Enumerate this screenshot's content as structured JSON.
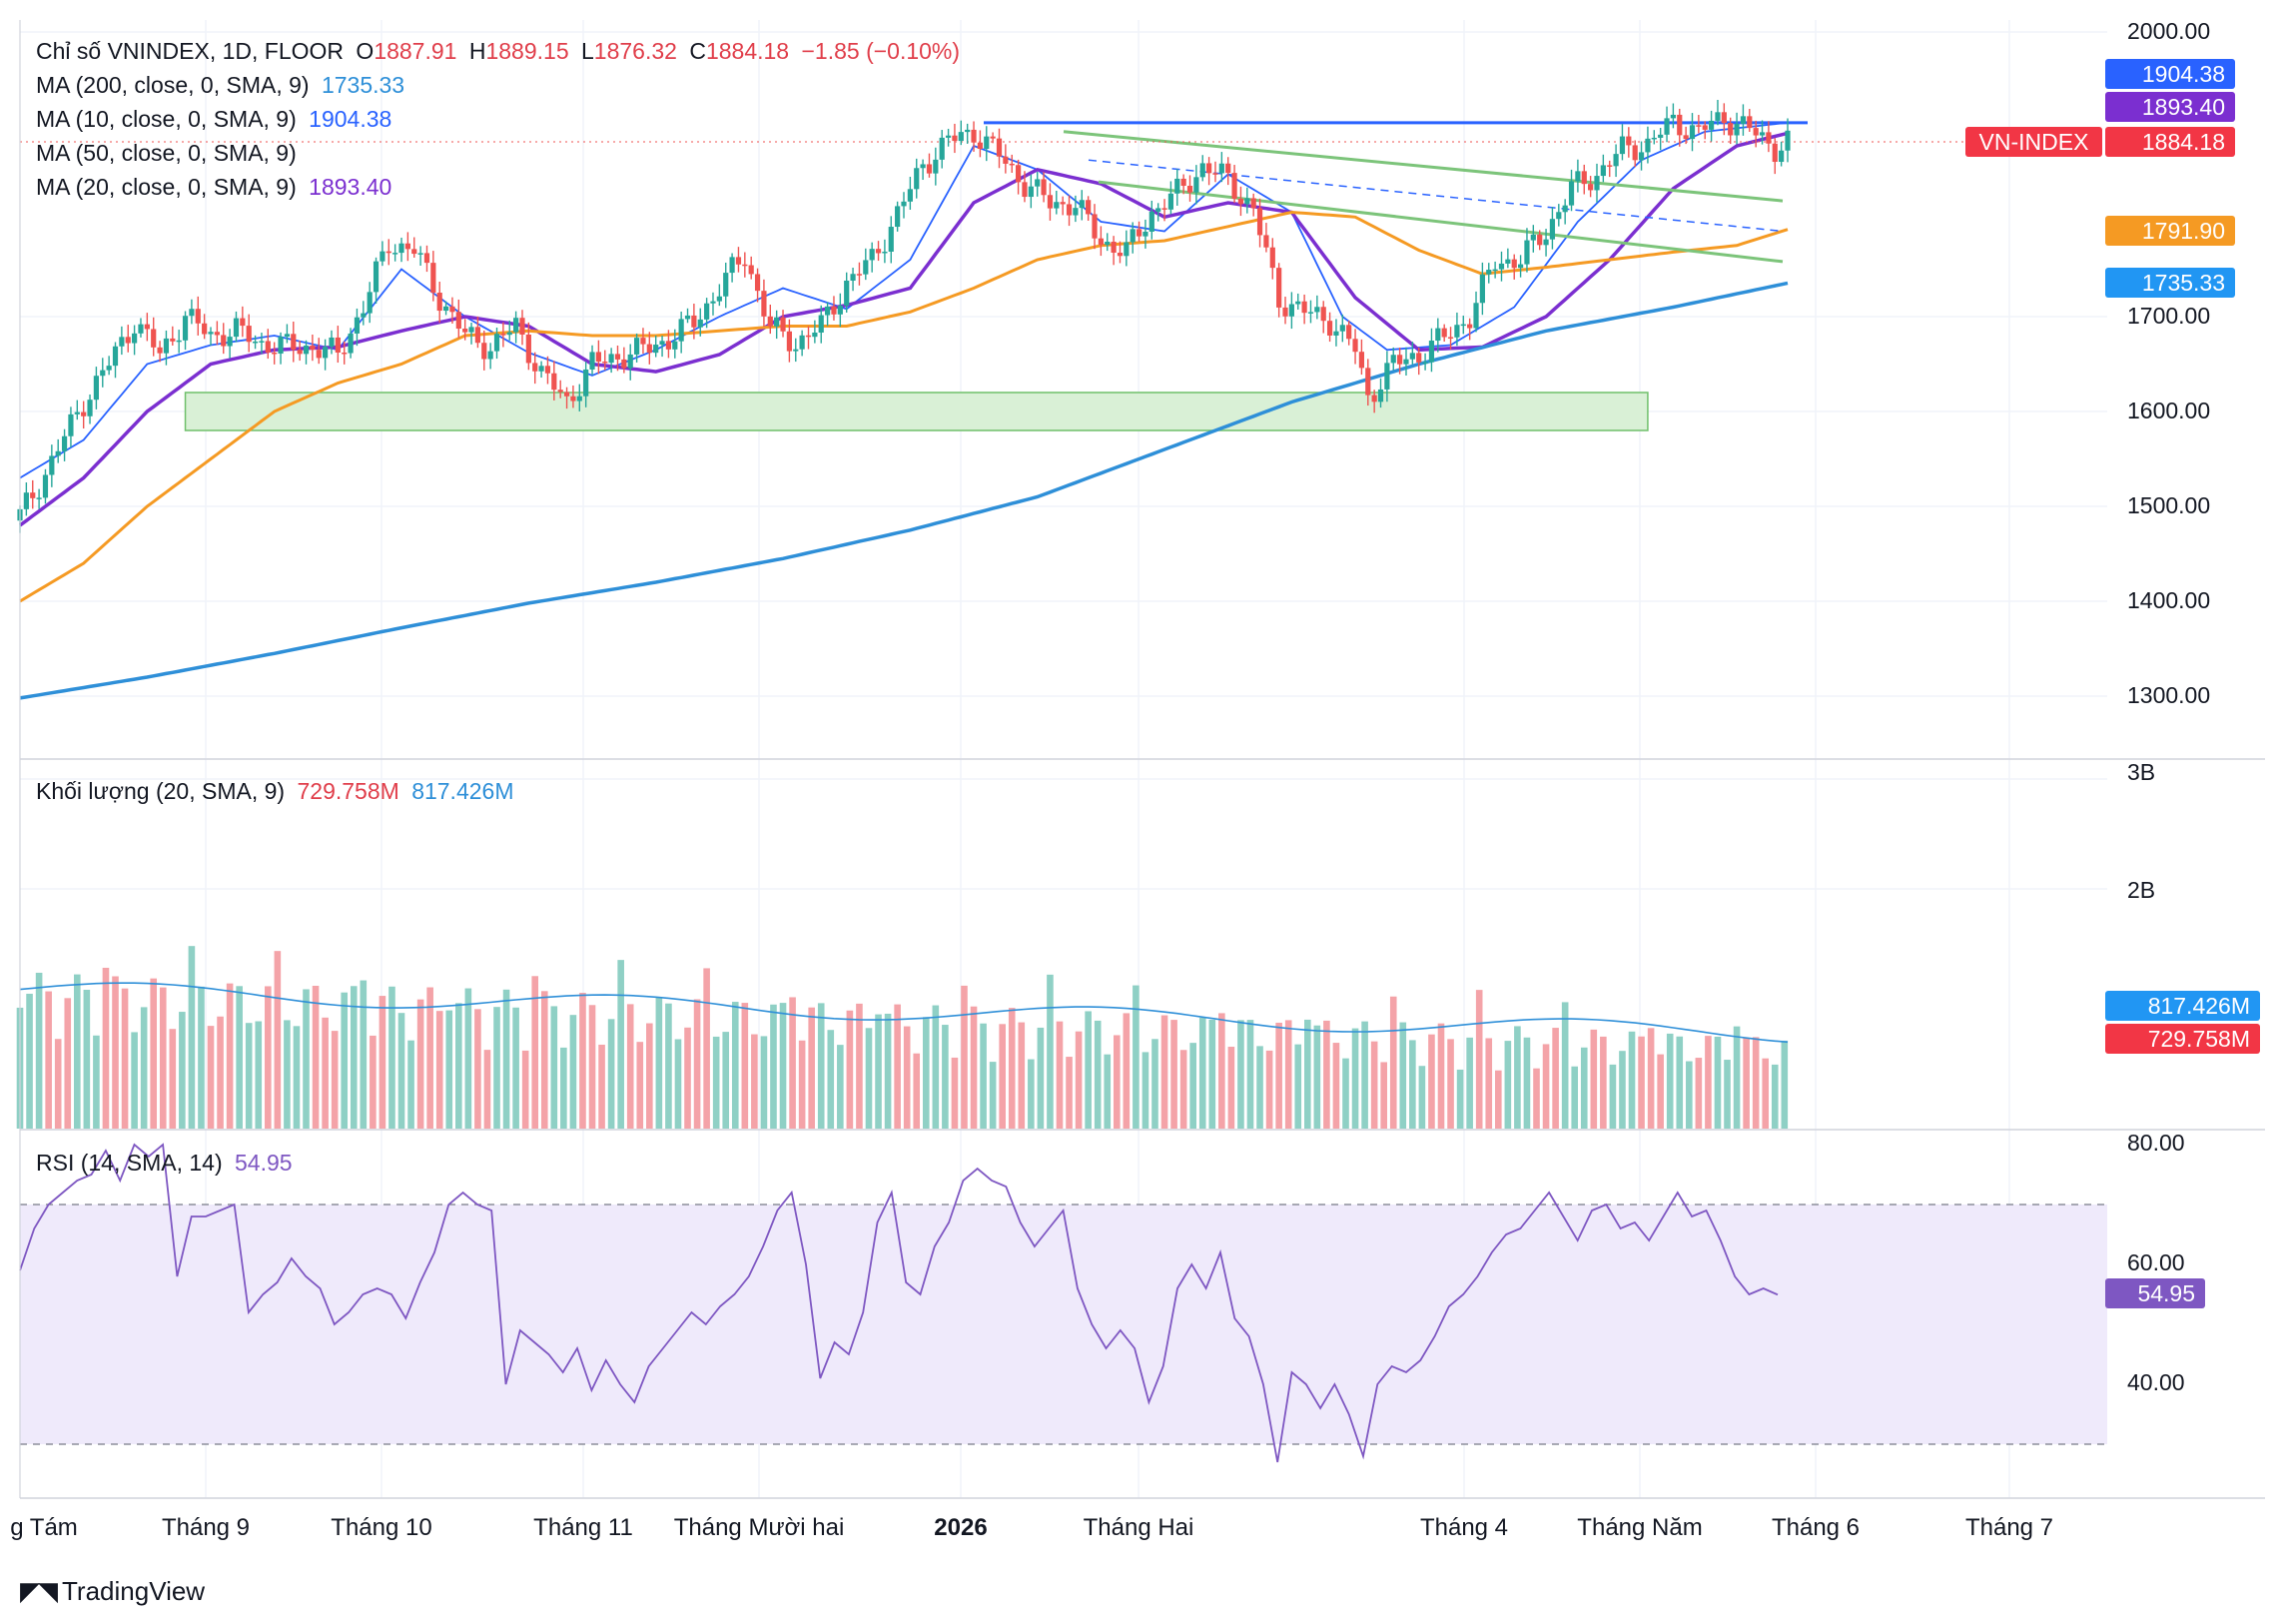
{
  "header": {
    "symbol_title": "Chỉ số VNINDEX, 1D, FLOOR",
    "o_label": "O",
    "o_value": "1887.91",
    "h_label": "H",
    "h_value": "1889.15",
    "l_label": "L",
    "l_value": "1876.32",
    "c_label": "C",
    "c_value": "1884.18",
    "change": "−1.85 (−0.10%)"
  },
  "indicators": {
    "ma200": {
      "label": "MA (200, close, 0, SMA, 9)",
      "value": "1735.33",
      "color": "#2e8fd8"
    },
    "ma10": {
      "label": "MA (10, close, 0, SMA, 9)",
      "value": "1904.38",
      "color": "#2962ff"
    },
    "ma50": {
      "label": "MA (50, close, 0, SMA, 9)",
      "value": "",
      "color": "#f59a23"
    },
    "ma20": {
      "label": "MA (20, close, 0, SMA, 9)",
      "value": "1893.40",
      "color": "#7b2fd0"
    }
  },
  "volume_panel": {
    "label": "Khối lượng (20, SMA, 9)",
    "value1": "729.758M",
    "value2": "817.426M"
  },
  "rsi_panel": {
    "label": "RSI (14, SMA, 14)",
    "value": "54.95"
  },
  "price_tags": {
    "ma10": "1904.38",
    "ma20": "1893.40",
    "symbol_name": "VN-INDEX",
    "last": "1884.18",
    "ma50": "1791.90",
    "ma200": "1735.33",
    "vol_ma": "817.426M",
    "vol_last": "729.758M",
    "rsi": "54.95"
  },
  "brand": "TradingView",
  "colors": {
    "up": "#26a69a",
    "down": "#ef5350",
    "vol_up": "#8fd0c5",
    "vol_down": "#f4a3a8",
    "support_zone": "#d9f0d6",
    "rsi_band": "#efeafb",
    "rsi_line": "#7e57c2",
    "resistance": "#2962ff",
    "channel": "#7cc47a"
  },
  "chart_data": [
    {
      "type": "candlestick",
      "title": "Chỉ số VNINDEX, 1D, FLOOR",
      "y_ticks": [
        "2000.00",
        "1700.00",
        "1600.00",
        "1500.00",
        "1400.00",
        "1300.00"
      ],
      "ylim": [
        1235,
        2020
      ],
      "x_ticks": [
        "g Tám",
        "Tháng 9",
        "Tháng 10",
        "Tháng 11",
        "Tháng Mười hai",
        "2026",
        "Tháng Hai",
        "Tháng 4",
        "Tháng Năm",
        "Tháng 6",
        "Tháng 7"
      ],
      "close_path": [
        [
          0,
          1490
        ],
        [
          4,
          1535
        ],
        [
          10,
          1610
        ],
        [
          14,
          1650
        ],
        [
          18,
          1695
        ],
        [
          22,
          1660
        ],
        [
          26,
          1700
        ],
        [
          30,
          1680
        ],
        [
          34,
          1685
        ],
        [
          38,
          1672
        ],
        [
          42,
          1668
        ],
        [
          46,
          1668
        ],
        [
          50,
          1660
        ],
        [
          54,
          1710
        ],
        [
          58,
          1778
        ],
        [
          62,
          1770
        ],
        [
          66,
          1720
        ],
        [
          70,
          1680
        ],
        [
          74,
          1668
        ],
        [
          78,
          1690
        ],
        [
          82,
          1640
        ],
        [
          86,
          1610
        ],
        [
          90,
          1650
        ],
        [
          94,
          1658
        ],
        [
          98,
          1665
        ],
        [
          102,
          1676
        ],
        [
          106,
          1694
        ],
        [
          110,
          1730
        ],
        [
          114,
          1765
        ],
        [
          118,
          1688
        ],
        [
          122,
          1672
        ],
        [
          126,
          1690
        ],
        [
          130,
          1735
        ],
        [
          134,
          1760
        ],
        [
          138,
          1808
        ],
        [
          142,
          1860
        ],
        [
          146,
          1885
        ],
        [
          150,
          1895
        ],
        [
          154,
          1870
        ],
        [
          158,
          1840
        ],
        [
          162,
          1820
        ],
        [
          166,
          1818
        ],
        [
          170,
          1780
        ],
        [
          174,
          1768
        ],
        [
          178,
          1810
        ],
        [
          182,
          1830
        ],
        [
          186,
          1858
        ],
        [
          190,
          1845
        ],
        [
          194,
          1812
        ],
        [
          198,
          1718
        ],
        [
          202,
          1705
        ],
        [
          206,
          1696
        ],
        [
          210,
          1665
        ],
        [
          212,
          1615
        ],
        [
          216,
          1650
        ],
        [
          220,
          1660
        ],
        [
          224,
          1678
        ],
        [
          228,
          1700
        ],
        [
          232,
          1758
        ],
        [
          236,
          1760
        ],
        [
          240,
          1790
        ],
        [
          244,
          1835
        ],
        [
          248,
          1850
        ],
        [
          252,
          1876
        ],
        [
          256,
          1882
        ],
        [
          260,
          1905
        ],
        [
          264,
          1895
        ],
        [
          268,
          1910
        ],
        [
          272,
          1897
        ],
        [
          276,
          1878
        ],
        [
          278,
          1884.18
        ]
      ],
      "series": [
        {
          "name": "MA (10, close, 0, SMA, 9)",
          "path": [
            [
              0,
              1530
            ],
            [
              10,
              1570
            ],
            [
              20,
              1650
            ],
            [
              30,
              1670
            ],
            [
              40,
              1680
            ],
            [
              50,
              1665
            ],
            [
              60,
              1750
            ],
            [
              70,
              1700
            ],
            [
              80,
              1662
            ],
            [
              90,
              1638
            ],
            [
              100,
              1665
            ],
            [
              110,
              1700
            ],
            [
              120,
              1730
            ],
            [
              130,
              1708
            ],
            [
              140,
              1760
            ],
            [
              150,
              1880
            ],
            [
              160,
              1855
            ],
            [
              170,
              1800
            ],
            [
              180,
              1790
            ],
            [
              190,
              1850
            ],
            [
              200,
              1810
            ],
            [
              208,
              1700
            ],
            [
              215,
              1665
            ],
            [
              225,
              1670
            ],
            [
              235,
              1710
            ],
            [
              245,
              1800
            ],
            [
              255,
              1865
            ],
            [
              265,
              1895
            ],
            [
              278,
              1904.38
            ]
          ]
        },
        {
          "name": "MA (20, close, 0, SMA, 9)",
          "path": [
            [
              0,
              1480
            ],
            [
              10,
              1530
            ],
            [
              20,
              1600
            ],
            [
              30,
              1650
            ],
            [
              40,
              1665
            ],
            [
              50,
              1668
            ],
            [
              60,
              1685
            ],
            [
              70,
              1700
            ],
            [
              80,
              1690
            ],
            [
              90,
              1650
            ],
            [
              100,
              1642
            ],
            [
              110,
              1660
            ],
            [
              120,
              1700
            ],
            [
              130,
              1712
            ],
            [
              140,
              1730
            ],
            [
              150,
              1820
            ],
            [
              160,
              1855
            ],
            [
              170,
              1840
            ],
            [
              180,
              1805
            ],
            [
              190,
              1820
            ],
            [
              200,
              1810
            ],
            [
              210,
              1720
            ],
            [
              220,
              1665
            ],
            [
              230,
              1668
            ],
            [
              240,
              1700
            ],
            [
              250,
              1760
            ],
            [
              260,
              1835
            ],
            [
              270,
              1880
            ],
            [
              278,
              1893.4
            ]
          ]
        },
        {
          "name": "MA (50, close, 0, SMA, 9)",
          "path": [
            [
              0,
              1400
            ],
            [
              10,
              1440
            ],
            [
              20,
              1500
            ],
            [
              30,
              1550
            ],
            [
              40,
              1600
            ],
            [
              50,
              1630
            ],
            [
              60,
              1650
            ],
            [
              70,
              1680
            ],
            [
              80,
              1685
            ],
            [
              90,
              1680
            ],
            [
              100,
              1680
            ],
            [
              110,
              1685
            ],
            [
              120,
              1690
            ],
            [
              130,
              1690
            ],
            [
              140,
              1705
            ],
            [
              150,
              1730
            ],
            [
              160,
              1760
            ],
            [
              170,
              1775
            ],
            [
              180,
              1780
            ],
            [
              190,
              1795
            ],
            [
              200,
              1810
            ],
            [
              210,
              1805
            ],
            [
              220,
              1770
            ],
            [
              230,
              1745
            ],
            [
              240,
              1752
            ],
            [
              250,
              1760
            ],
            [
              260,
              1768
            ],
            [
              270,
              1775
            ],
            [
              278,
              1791.9
            ]
          ]
        },
        {
          "name": "MA (200, close, 0, SMA, 9)",
          "path": [
            [
              0,
              1298
            ],
            [
              20,
              1320
            ],
            [
              40,
              1345
            ],
            [
              60,
              1372
            ],
            [
              80,
              1398
            ],
            [
              100,
              1420
            ],
            [
              120,
              1445
            ],
            [
              140,
              1475
            ],
            [
              160,
              1510
            ],
            [
              180,
              1560
            ],
            [
              200,
              1610
            ],
            [
              220,
              1650
            ],
            [
              240,
              1685
            ],
            [
              260,
              1710
            ],
            [
              278,
              1735.33
            ]
          ]
        }
      ],
      "support_zone": [
        1580,
        1620
      ],
      "resistance_level": 1904.38,
      "last_close": 1884.18
    },
    {
      "type": "bar",
      "title": "Khối lượng (20, SMA, 9)",
      "y_ticks": [
        "3B",
        "2B"
      ],
      "ylim": [
        0,
        3100000000
      ],
      "last_value": 729758000,
      "ma_value": 817426000
    },
    {
      "type": "line",
      "title": "RSI (14, SMA, 14)",
      "y_ticks": [
        "80.00",
        "60.00",
        "40.00"
      ],
      "ylim": [
        24,
        82
      ],
      "band": [
        30,
        70
      ],
      "last_value": 54.95,
      "path": [
        [
          0,
          59
        ],
        [
          2,
          66
        ],
        [
          4,
          70
        ],
        [
          6,
          72
        ],
        [
          8,
          74
        ],
        [
          10,
          75
        ],
        [
          12,
          79
        ],
        [
          14,
          74
        ],
        [
          16,
          80
        ],
        [
          18,
          78
        ],
        [
          20,
          80
        ],
        [
          22,
          58
        ],
        [
          24,
          68
        ],
        [
          26,
          68
        ],
        [
          28,
          69
        ],
        [
          30,
          70
        ],
        [
          32,
          52
        ],
        [
          34,
          55
        ],
        [
          36,
          57
        ],
        [
          38,
          61
        ],
        [
          40,
          58
        ],
        [
          42,
          56
        ],
        [
          44,
          50
        ],
        [
          46,
          52
        ],
        [
          48,
          55
        ],
        [
          50,
          56
        ],
        [
          52,
          55
        ],
        [
          54,
          51
        ],
        [
          56,
          57
        ],
        [
          58,
          62
        ],
        [
          60,
          70
        ],
        [
          62,
          72
        ],
        [
          64,
          70
        ],
        [
          66,
          69
        ],
        [
          68,
          40
        ],
        [
          70,
          49
        ],
        [
          72,
          47
        ],
        [
          74,
          45
        ],
        [
          76,
          42
        ],
        [
          78,
          46
        ],
        [
          80,
          39
        ],
        [
          82,
          44
        ],
        [
          84,
          40
        ],
        [
          86,
          37
        ],
        [
          88,
          43
        ],
        [
          90,
          46
        ],
        [
          92,
          49
        ],
        [
          94,
          52
        ],
        [
          96,
          50
        ],
        [
          98,
          53
        ],
        [
          100,
          55
        ],
        [
          102,
          58
        ],
        [
          104,
          63
        ],
        [
          106,
          69
        ],
        [
          108,
          72
        ],
        [
          110,
          60
        ],
        [
          112,
          41
        ],
        [
          114,
          47
        ],
        [
          116,
          45
        ],
        [
          118,
          52
        ],
        [
          120,
          67
        ],
        [
          122,
          72
        ],
        [
          124,
          57
        ],
        [
          126,
          55
        ],
        [
          128,
          63
        ],
        [
          130,
          67
        ],
        [
          132,
          74
        ],
        [
          134,
          76
        ],
        [
          136,
          74
        ],
        [
          138,
          73
        ],
        [
          140,
          67
        ],
        [
          142,
          63
        ],
        [
          144,
          66
        ],
        [
          146,
          69
        ],
        [
          148,
          56
        ],
        [
          150,
          50
        ],
        [
          152,
          46
        ],
        [
          154,
          49
        ],
        [
          156,
          46
        ],
        [
          158,
          37
        ],
        [
          160,
          43
        ],
        [
          162,
          56
        ],
        [
          164,
          60
        ],
        [
          166,
          56
        ],
        [
          168,
          62
        ],
        [
          170,
          51
        ],
        [
          172,
          48
        ],
        [
          174,
          40
        ],
        [
          176,
          27
        ],
        [
          178,
          42
        ],
        [
          180,
          40
        ],
        [
          182,
          36
        ],
        [
          184,
          40
        ],
        [
          186,
          35
        ],
        [
          188,
          28
        ],
        [
          190,
          40
        ],
        [
          192,
          43
        ],
        [
          194,
          42
        ],
        [
          196,
          44
        ],
        [
          198,
          48
        ],
        [
          200,
          53
        ],
        [
          202,
          55
        ],
        [
          204,
          58
        ],
        [
          206,
          62
        ],
        [
          208,
          65
        ],
        [
          210,
          66
        ],
        [
          212,
          69
        ],
        [
          214,
          72
        ],
        [
          216,
          68
        ],
        [
          218,
          64
        ],
        [
          220,
          69
        ],
        [
          222,
          70
        ],
        [
          224,
          66
        ],
        [
          226,
          67
        ],
        [
          228,
          64
        ],
        [
          230,
          68
        ],
        [
          232,
          72
        ],
        [
          234,
          68
        ],
        [
          236,
          69
        ],
        [
          238,
          64
        ],
        [
          240,
          58
        ],
        [
          242,
          55
        ],
        [
          244,
          56
        ],
        [
          246,
          54.95
        ]
      ]
    }
  ]
}
